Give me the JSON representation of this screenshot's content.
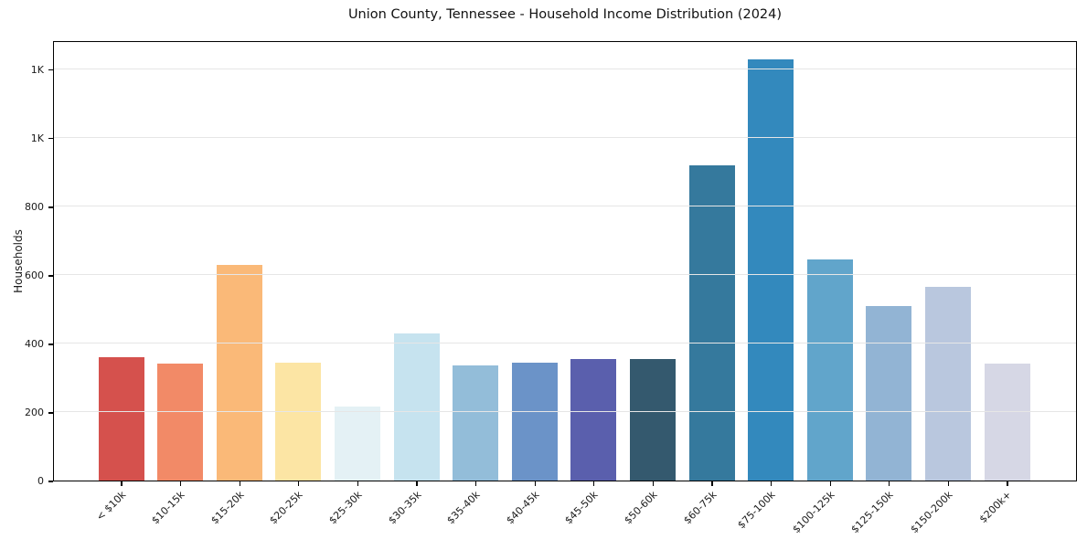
{
  "title": "Union County, Tennessee - Household Income Distribution (2024)",
  "chart_data": {
    "type": "bar",
    "title": "Union County, Tennessee - Household Income Distribution (2024)",
    "xlabel": "",
    "ylabel": "Households",
    "categories": [
      "< $10k",
      "$10-15k",
      "$15-20k",
      "$20-25k",
      "$25-30k",
      "$30-35k",
      "$35-40k",
      "$40-45k",
      "$45-50k",
      "$50-60k",
      "$60-75k",
      "$75-100k",
      "$100-125k",
      "$125-150k",
      "$150-200k",
      "$200k+"
    ],
    "values": [
      360,
      340,
      630,
      345,
      215,
      430,
      335,
      345,
      355,
      355,
      920,
      1230,
      645,
      510,
      565,
      340
    ],
    "bar_colors": [
      "#d5514d",
      "#f28a67",
      "#fab978",
      "#fce5a4",
      "#e4f1f5",
      "#c6e3ef",
      "#93bdd9",
      "#6b93c8",
      "#5a5fad",
      "#34596e",
      "#35799d",
      "#3389bd",
      "#61a5cb",
      "#92b4d4",
      "#b9c7de",
      "#d6d7e5"
    ],
    "ylim": [
      0,
      1285
    ],
    "yticks": [
      {
        "value": 0,
        "label": "0"
      },
      {
        "value": 200,
        "label": "200"
      },
      {
        "value": 400,
        "label": "400"
      },
      {
        "value": 600,
        "label": "600"
      },
      {
        "value": 800,
        "label": "800"
      },
      {
        "value": 1000,
        "label": "1K"
      },
      {
        "value": 1200,
        "label": "1K"
      }
    ],
    "grid": true,
    "grid_color": "#e6e6e6",
    "legend_position": "none",
    "background_color": "#ffffff",
    "spine_color": "#000000",
    "text_color": "#1a1a1a"
  }
}
